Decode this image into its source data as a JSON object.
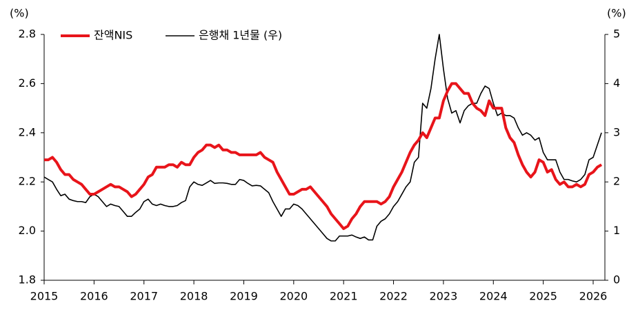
{
  "chart_data": {
    "type": "line",
    "y_unit": "(%)",
    "y2_unit": "(%)",
    "categories": [
      "2015",
      null,
      null,
      null,
      null,
      null,
      null,
      null,
      null,
      null,
      null,
      null,
      "2016",
      null,
      null,
      null,
      null,
      null,
      null,
      null,
      null,
      null,
      null,
      null,
      "2017",
      null,
      null,
      null,
      null,
      null,
      null,
      null,
      null,
      null,
      null,
      null,
      "2018",
      null,
      null,
      null,
      null,
      null,
      null,
      null,
      null,
      null,
      null,
      null,
      "2019",
      null,
      null,
      null,
      null,
      null,
      null,
      null,
      null,
      null,
      null,
      null,
      "2020",
      null,
      null,
      null,
      null,
      null,
      null,
      null,
      null,
      null,
      null,
      null,
      "2021",
      null,
      null,
      null,
      null,
      null,
      null,
      null,
      null,
      null,
      null,
      null,
      "2022",
      null,
      null,
      null,
      null,
      null,
      null,
      null,
      null,
      null,
      null,
      null,
      "2023",
      null,
      null,
      null,
      null,
      null,
      null,
      null,
      null,
      null,
      null,
      null,
      "2024",
      null,
      null,
      null,
      null,
      null,
      null,
      null,
      null,
      null,
      null,
      null,
      "2025",
      null,
      null,
      null,
      null,
      null,
      null,
      null,
      null,
      null,
      null,
      null,
      "2026",
      null,
      null
    ],
    "series": [
      {
        "name": "잔액NIS",
        "color": "#e8141a",
        "values": [
          2.29,
          2.29,
          2.3,
          2.28,
          2.25,
          2.23,
          2.23,
          2.21,
          2.2,
          2.19,
          2.17,
          2.15,
          2.15,
          2.16,
          2.17,
          2.18,
          2.19,
          2.18,
          2.18,
          2.17,
          2.16,
          2.14,
          2.15,
          2.17,
          2.19,
          2.22,
          2.23,
          2.26,
          2.26,
          2.26,
          2.27,
          2.27,
          2.26,
          2.28,
          2.27,
          2.27,
          2.3,
          2.32,
          2.33,
          2.35,
          2.35,
          2.34,
          2.35,
          2.33,
          2.33,
          2.32,
          2.32,
          2.31,
          2.31,
          2.31,
          2.31,
          2.31,
          2.32,
          2.3,
          2.29,
          2.28,
          2.24,
          2.21,
          2.18,
          2.15,
          2.15,
          2.16,
          2.17,
          2.17,
          2.18,
          2.16,
          2.14,
          2.12,
          2.1,
          2.07,
          2.05,
          2.03,
          2.01,
          2.02,
          2.05,
          2.07,
          2.1,
          2.12,
          2.12,
          2.12,
          2.12,
          2.11,
          2.12,
          2.14,
          2.18,
          2.21,
          2.24,
          2.28,
          2.32,
          2.35,
          2.37,
          2.4,
          2.38,
          2.42,
          2.46,
          2.46,
          2.53,
          2.57,
          2.6,
          2.6,
          2.58,
          2.56,
          2.56,
          2.52,
          2.5,
          2.49,
          2.47,
          2.53,
          2.5,
          2.5,
          2.5,
          2.42,
          2.38,
          2.36,
          2.31,
          2.27,
          2.24,
          2.22,
          2.24,
          2.29,
          2.28,
          2.24,
          2.25,
          2.21,
          2.19,
          2.2,
          2.18,
          2.18,
          2.19,
          2.18,
          2.19,
          2.23,
          2.24,
          2.26,
          2.27
        ]
      },
      {
        "name": "은행채 1년물 (우)",
        "color": "#000000",
        "axis": "y2",
        "values": [
          2.1,
          2.05,
          2.0,
          1.85,
          1.72,
          1.75,
          1.65,
          1.62,
          1.6,
          1.6,
          1.58,
          1.7,
          1.75,
          1.7,
          1.6,
          1.5,
          1.55,
          1.52,
          1.5,
          1.4,
          1.3,
          1.3,
          1.38,
          1.45,
          1.6,
          1.65,
          1.55,
          1.52,
          1.55,
          1.52,
          1.5,
          1.5,
          1.52,
          1.58,
          1.62,
          1.9,
          2.0,
          1.95,
          1.93,
          1.98,
          2.03,
          1.97,
          1.98,
          1.98,
          1.97,
          1.95,
          1.95,
          2.05,
          2.03,
          1.97,
          1.92,
          1.93,
          1.92,
          1.85,
          1.78,
          1.6,
          1.45,
          1.3,
          1.45,
          1.45,
          1.55,
          1.52,
          1.45,
          1.35,
          1.25,
          1.15,
          1.05,
          0.95,
          0.85,
          0.8,
          0.8,
          0.9,
          0.9,
          0.9,
          0.92,
          0.88,
          0.85,
          0.88,
          0.82,
          0.82,
          1.1,
          1.2,
          1.25,
          1.35,
          1.5,
          1.6,
          1.75,
          1.9,
          2.0,
          2.4,
          2.5,
          3.6,
          3.5,
          3.9,
          4.5,
          5.0,
          4.3,
          3.7,
          3.4,
          3.45,
          3.2,
          3.45,
          3.55,
          3.6,
          3.6,
          3.8,
          3.95,
          3.9,
          3.6,
          3.35,
          3.4,
          3.35,
          3.35,
          3.3,
          3.1,
          2.95,
          3.0,
          2.95,
          2.85,
          2.9,
          2.6,
          2.45,
          2.45,
          2.45,
          2.2,
          2.05,
          2.05,
          2.02,
          2.0,
          2.05,
          2.15,
          2.45,
          2.5,
          2.75,
          3.0
        ]
      }
    ],
    "ylim": [
      1.8,
      2.8
    ],
    "yticks": [
      1.8,
      {
        "value": 2,
        "label": "2.0"
      },
      2.2,
      2.4,
      2.6,
      2.8
    ],
    "y2lim": [
      0,
      5
    ],
    "y2ticks": [
      0,
      1,
      2,
      3,
      4,
      5
    ],
    "legend": "top-left"
  }
}
